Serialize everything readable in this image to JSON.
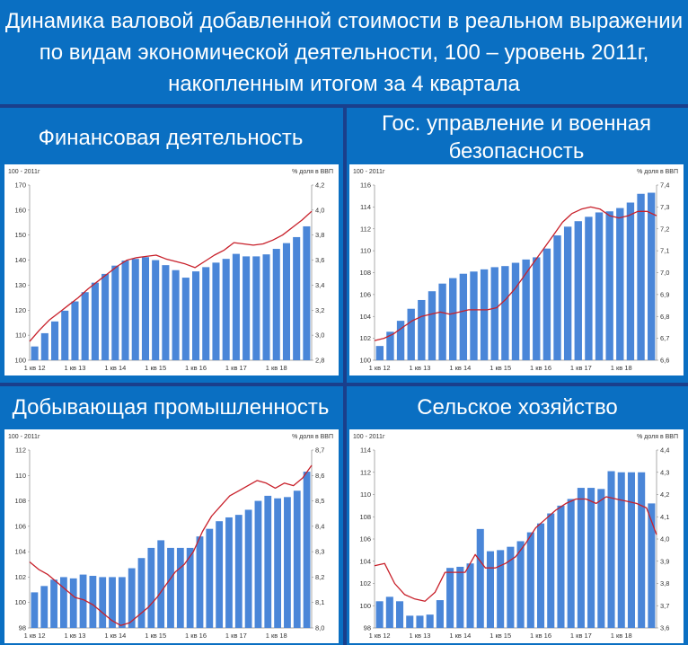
{
  "title": "Динамика валовой добавленной стоимости в реальном выражении по видам экономической деятельности, 100 – уровень 2011г, накопленным итогом за 4 квартала",
  "colors": {
    "background": "#0a6fc2",
    "bar": "#4a86d8",
    "line": "#c8202a",
    "text": "#ffffff"
  },
  "chart_data": [
    {
      "type": "bar",
      "title": "Финансовая деятельность",
      "left_label": "100 - 2011г",
      "right_label": "%  доля в ВВП",
      "xticks": [
        "1 кв 12",
        "1 кв 13",
        "1 кв 14",
        "1 кв 15",
        "1 кв 16",
        "1 кв 17",
        "1 кв 18"
      ],
      "ylim": [
        100,
        170
      ],
      "yticks": [
        100,
        110,
        120,
        130,
        140,
        150,
        160,
        170
      ],
      "y2lim": [
        2.8,
        4.2
      ],
      "y2ticks": [
        "2,8",
        "3,0",
        "3,2",
        "3,4",
        "3,6",
        "3,8",
        "4,0",
        "4,2"
      ],
      "series": [
        {
          "type": "bar",
          "values": [
            105.5,
            110.8,
            115.5,
            119.8,
            123.5,
            127.2,
            131,
            134.5,
            137.8,
            139.8,
            140.5,
            141.2,
            140,
            138,
            136,
            133,
            135.5,
            137.2,
            139,
            140.5,
            142.5,
            141.5,
            141.5,
            142.3,
            144.5,
            146.8,
            149.2,
            153.5
          ]
        },
        {
          "type": "line",
          "axis": "right",
          "values": [
            2.95,
            3.04,
            3.12,
            3.18,
            3.24,
            3.3,
            3.37,
            3.43,
            3.49,
            3.55,
            3.6,
            3.62,
            3.63,
            3.64,
            3.61,
            3.59,
            3.57,
            3.54,
            3.59,
            3.64,
            3.68,
            3.74,
            3.73,
            3.72,
            3.73,
            3.76,
            3.8,
            3.86,
            3.92,
            3.99
          ]
        }
      ]
    },
    {
      "type": "bar",
      "title": "Гос. управление и военная безопасность",
      "left_label": "100 - 2011г",
      "right_label": "%  доля в ВВП",
      "xticks": [
        "1 кв 12",
        "1 кв 13",
        "1 кв 14",
        "1 кв 15",
        "1 кв 16",
        "1 кв 17",
        "1 кв 18"
      ],
      "ylim": [
        100,
        116
      ],
      "yticks": [
        100,
        102,
        104,
        106,
        108,
        110,
        112,
        114,
        116
      ],
      "y2lim": [
        6.6,
        7.4
      ],
      "y2ticks": [
        "6,6",
        "6,7",
        "6,8",
        "6,9",
        "7,0",
        "7,1",
        "7,2",
        "7,3",
        "7,4"
      ],
      "series": [
        {
          "type": "bar",
          "values": [
            101.3,
            102.6,
            103.6,
            104.7,
            105.5,
            106.3,
            107,
            107.5,
            107.9,
            108.1,
            108.3,
            108.5,
            108.6,
            108.9,
            109.2,
            109.4,
            110.2,
            111.4,
            112.2,
            112.7,
            113.1,
            113.5,
            113.6,
            113.9,
            114.4,
            115.2,
            115.3
          ]
        },
        {
          "type": "line",
          "axis": "right",
          "values": [
            6.69,
            6.7,
            6.72,
            6.75,
            6.78,
            6.8,
            6.81,
            6.82,
            6.81,
            6.82,
            6.83,
            6.83,
            6.83,
            6.84,
            6.88,
            6.93,
            6.99,
            7.05,
            7.11,
            7.17,
            7.23,
            7.27,
            7.29,
            7.3,
            7.29,
            7.26,
            7.25,
            7.26,
            7.28,
            7.28,
            7.26
          ]
        }
      ]
    },
    {
      "type": "bar",
      "title": "Добывающая промышленность",
      "left_label": "100 - 2011г",
      "right_label": "%  доля в ВВП",
      "xticks": [
        "1 кв 12",
        "1 кв 13",
        "1 кв 14",
        "1 кв 15",
        "1 кв 16",
        "1 кв 17",
        "1 кв 18"
      ],
      "ylim": [
        98,
        112
      ],
      "yticks": [
        98,
        100,
        102,
        104,
        106,
        108,
        110,
        112
      ],
      "y2lim": [
        8.0,
        8.7
      ],
      "y2ticks": [
        "8,0",
        "8,1",
        "8,2",
        "8,3",
        "8,4",
        "8,5",
        "8,6",
        "8,7"
      ],
      "series": [
        {
          "type": "bar",
          "values": [
            100.8,
            101.3,
            101.8,
            102,
            101.9,
            102.2,
            102.1,
            102,
            102,
            102,
            102.7,
            103.5,
            104.3,
            104.9,
            104.3,
            104.3,
            104.3,
            105.2,
            105.8,
            106.4,
            106.7,
            106.9,
            107.3,
            108,
            108.4,
            108.2,
            108.3,
            108.8,
            110.3
          ]
        },
        {
          "type": "line",
          "axis": "right",
          "values": [
            8.26,
            8.23,
            8.21,
            8.18,
            8.15,
            8.12,
            8.11,
            8.09,
            8.06,
            8.03,
            8.01,
            8.02,
            8.05,
            8.08,
            8.12,
            8.17,
            8.22,
            8.25,
            8.3,
            8.38,
            8.44,
            8.48,
            8.52,
            8.54,
            8.56,
            8.58,
            8.57,
            8.55,
            8.57,
            8.56,
            8.59,
            8.64
          ]
        }
      ]
    },
    {
      "type": "bar",
      "title": "Сельское хозяйство",
      "left_label": "100 - 2011г",
      "right_label": "%  доля в ВВП",
      "xticks": [
        "1 кв 12",
        "1 кв 13",
        "1 кв 14",
        "1 кв 15",
        "1 кв 16",
        "1 кв 17",
        "1 кв 18"
      ],
      "ylim": [
        98,
        114
      ],
      "yticks": [
        98,
        100,
        102,
        104,
        106,
        108,
        110,
        112,
        114
      ],
      "y2lim": [
        3.6,
        4.4
      ],
      "y2ticks": [
        "3,6",
        "3,7",
        "3,8",
        "3,9",
        "4,0",
        "4,1",
        "4,2",
        "4,3",
        "4,4"
      ],
      "series": [
        {
          "type": "bar",
          "values": [
            100.4,
            100.8,
            100.4,
            99.1,
            99.1,
            99.2,
            100.5,
            103.4,
            103.5,
            103.8,
            106.9,
            104.9,
            105,
            105.3,
            105.8,
            106.6,
            107.4,
            108.3,
            109,
            109.6,
            110.6,
            110.6,
            110.5,
            112.1,
            112,
            112,
            112,
            109.2
          ]
        },
        {
          "type": "line",
          "axis": "right",
          "values": [
            3.88,
            3.89,
            3.8,
            3.75,
            3.73,
            3.72,
            3.76,
            3.85,
            3.85,
            3.85,
            3.93,
            3.87,
            3.87,
            3.89,
            3.92,
            3.98,
            4.05,
            4.09,
            4.13,
            4.16,
            4.18,
            4.18,
            4.16,
            4.19,
            4.18,
            4.17,
            4.16,
            4.14,
            4.02
          ]
        }
      ]
    }
  ]
}
